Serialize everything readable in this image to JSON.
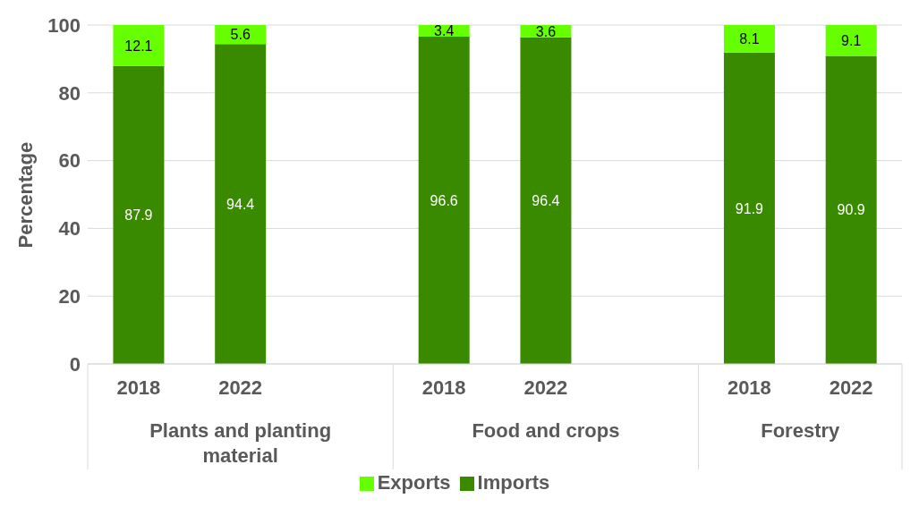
{
  "chart_data": {
    "type": "bar",
    "stacked": true,
    "ylabel": "Percentage",
    "categories": [
      "2018",
      "2022",
      null,
      "2018",
      "2022",
      null,
      "2018",
      "2022"
    ],
    "series": [
      {
        "name": "Imports",
        "color": "#3a8a00",
        "values": [
          87.9,
          94.4,
          null,
          96.6,
          96.4,
          null,
          91.9,
          90.9
        ]
      },
      {
        "name": "Exports",
        "color": "#66ff00",
        "values": [
          12.1,
          5.6,
          null,
          3.4,
          3.6,
          null,
          8.1,
          9.1
        ]
      }
    ],
    "annotations": [
      "Plants and planting material",
      "Food and crops",
      "Forestry"
    ],
    "ylim": [
      0,
      100
    ],
    "yticks": [
      0,
      20,
      40,
      60,
      80,
      100
    ],
    "grid": "y",
    "legend": "bottom",
    "data_labels": true
  }
}
